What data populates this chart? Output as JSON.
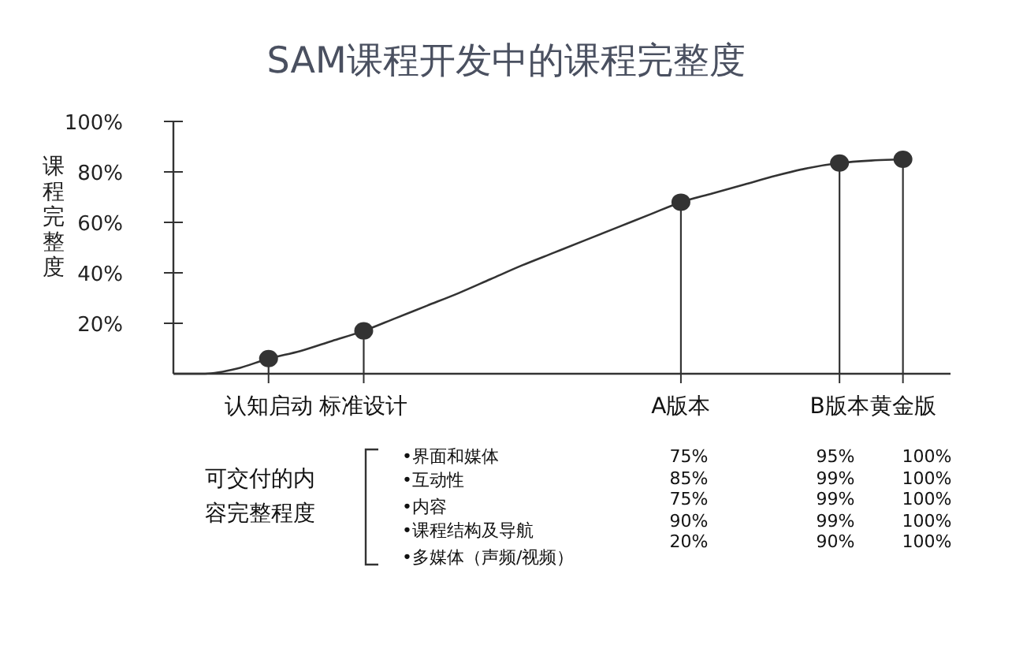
{
  "chart_data": {
    "type": "line",
    "title": "SAM课程开发中的课程完整度",
    "ylabel": "课程完整度",
    "categories": [
      null,
      null,
      null,
      "认知启动",
      null,
      null,
      "标准设计",
      null,
      null,
      null,
      null,
      null,
      null,
      null,
      null,
      null,
      "A版本",
      null,
      null,
      null,
      null,
      "B版本",
      null,
      "黄金版"
    ],
    "ylim": [
      0,
      100
    ],
    "yticks": [
      {
        "value": 20,
        "label": "20%"
      },
      {
        "value": 40,
        "label": "40%"
      },
      {
        "value": 60,
        "label": "60%"
      },
      {
        "value": 80,
        "label": "80%"
      },
      {
        "value": 100,
        "label": "100%"
      }
    ],
    "series": [
      {
        "color": "#333333",
        "values": [
          0,
          0,
          2,
          6,
          9,
          13,
          17,
          22,
          27,
          32,
          37.5,
          43,
          48,
          53,
          58,
          63,
          68,
          71.5,
          75,
          78.5,
          81.5,
          83.5,
          84.5,
          85
        ]
      },
      {
        "type": "lollipop",
        "color": "#333333",
        "values": [
          null,
          null,
          null,
          6,
          null,
          null,
          17,
          null,
          null,
          null,
          null,
          null,
          null,
          null,
          null,
          null,
          68,
          null,
          null,
          null,
          null,
          83.5,
          null,
          85
        ]
      }
    ],
    "annotations": [
      "可交付的内容完整程度",
      "•界面和媒体",
      "75%",
      "95%",
      "100%",
      "•互动性",
      "85%",
      "99%",
      "100%",
      "•内容",
      "75%",
      "99%",
      "100%",
      "•课程结构及导航",
      "90%",
      "99%",
      "100%",
      "•多媒体（声频/视频）",
      "20%",
      "90%",
      "100%"
    ]
  }
}
